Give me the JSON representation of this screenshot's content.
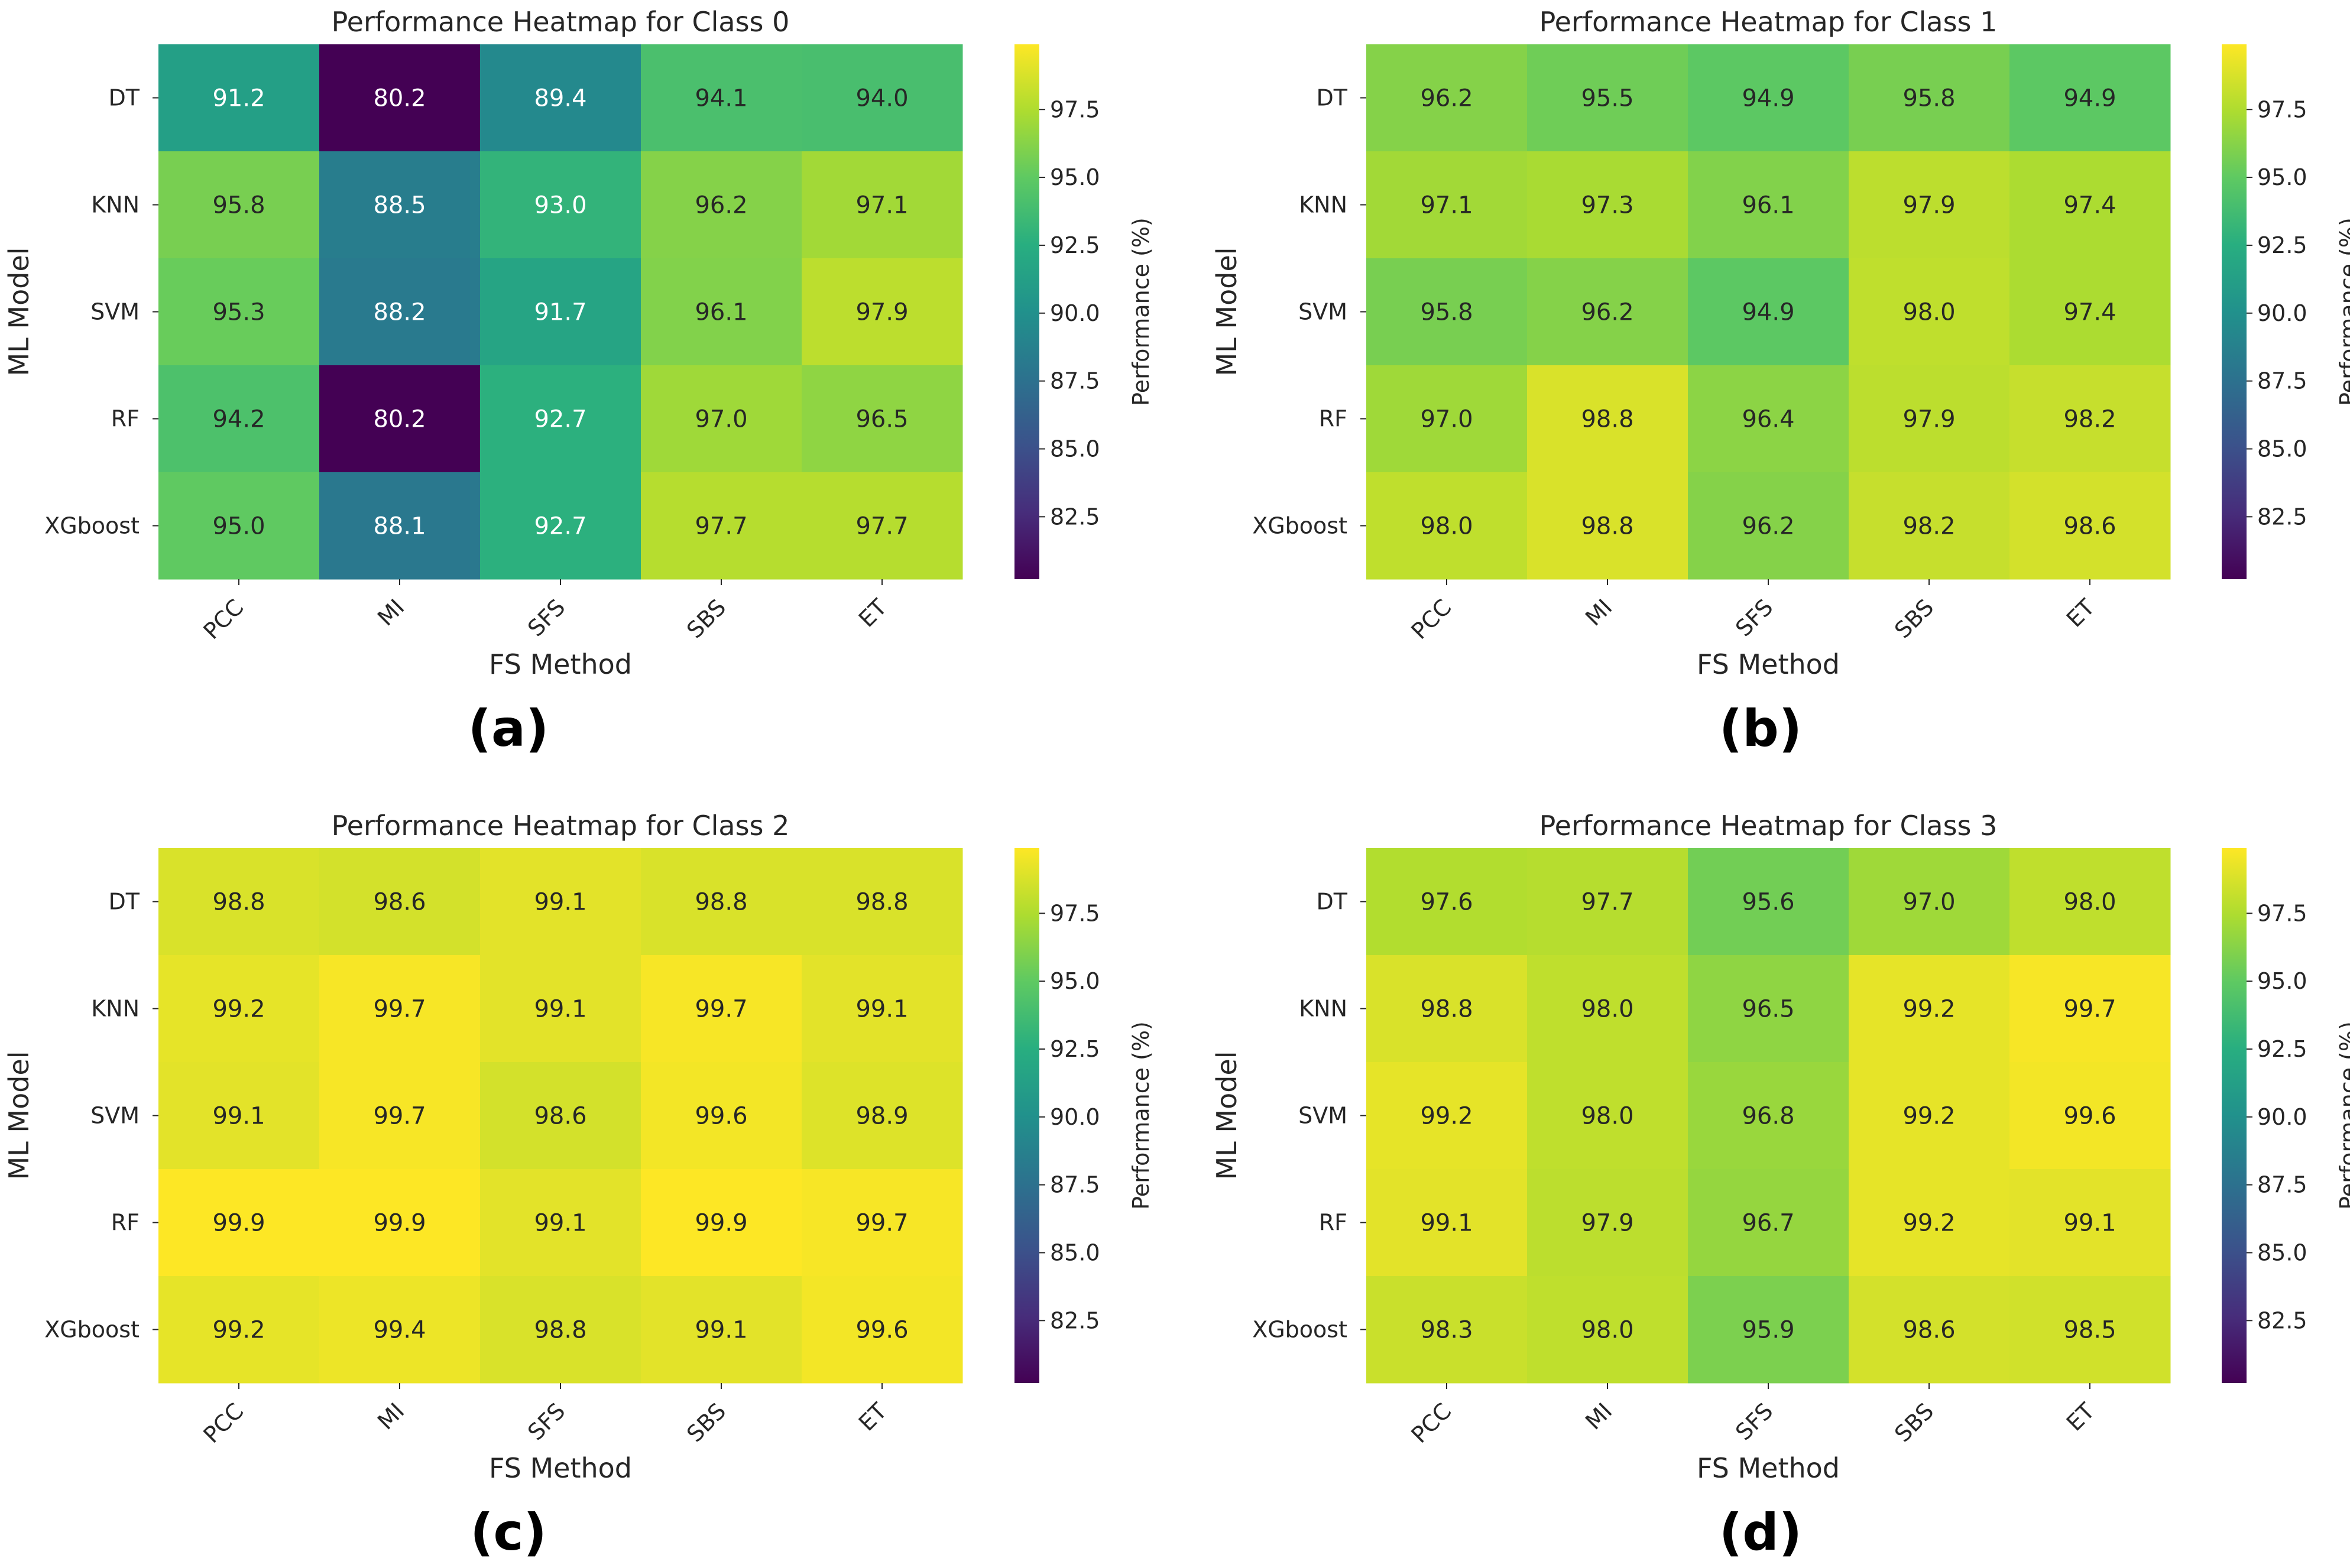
{
  "chart_data": [
    {
      "type": "heatmap",
      "title": "Performance Heatmap for Class 0",
      "panel_label": "(a)",
      "xlabel": "FS Method",
      "ylabel": "ML Model",
      "x_categories": [
        "PCC",
        "MI",
        "SFS",
        "SBS",
        "ET"
      ],
      "y_categories": [
        "DT",
        "KNN",
        "SVM",
        "RF",
        "XGboost"
      ],
      "values": [
        [
          91.2,
          80.2,
          89.4,
          94.1,
          94.0
        ],
        [
          95.8,
          88.5,
          93.0,
          96.2,
          97.1
        ],
        [
          95.3,
          88.2,
          91.7,
          96.1,
          97.9
        ],
        [
          94.2,
          80.2,
          92.7,
          97.0,
          96.5
        ],
        [
          95.0,
          88.1,
          92.7,
          97.7,
          97.7
        ]
      ],
      "colorbar": {
        "label": "Performance (%)",
        "min": 80.2,
        "max": 99.9,
        "ticks": [
          "82.5",
          "85.0",
          "87.5",
          "90.0",
          "92.5",
          "95.0",
          "97.5"
        ]
      }
    },
    {
      "type": "heatmap",
      "title": "Performance Heatmap for Class 1",
      "panel_label": "(b)",
      "xlabel": "FS Method",
      "ylabel": "ML Model",
      "x_categories": [
        "PCC",
        "MI",
        "SFS",
        "SBS",
        "ET"
      ],
      "y_categories": [
        "DT",
        "KNN",
        "SVM",
        "RF",
        "XGboost"
      ],
      "values": [
        [
          96.2,
          95.5,
          94.9,
          95.8,
          94.9
        ],
        [
          97.1,
          97.3,
          96.1,
          97.9,
          97.4
        ],
        [
          95.8,
          96.2,
          94.9,
          98.0,
          97.4
        ],
        [
          97.0,
          98.8,
          96.4,
          97.9,
          98.2
        ],
        [
          98.0,
          98.8,
          96.2,
          98.2,
          98.6
        ]
      ],
      "colorbar": {
        "label": "Performance (%)",
        "min": 80.2,
        "max": 99.9,
        "ticks": [
          "82.5",
          "85.0",
          "87.5",
          "90.0",
          "92.5",
          "95.0",
          "97.5"
        ]
      }
    },
    {
      "type": "heatmap",
      "title": "Performance Heatmap for Class 2",
      "panel_label": "(c)",
      "xlabel": "FS Method",
      "ylabel": "ML Model",
      "x_categories": [
        "PCC",
        "MI",
        "SFS",
        "SBS",
        "ET"
      ],
      "y_categories": [
        "DT",
        "KNN",
        "SVM",
        "RF",
        "XGboost"
      ],
      "values": [
        [
          98.8,
          98.6,
          99.1,
          98.8,
          98.8
        ],
        [
          99.2,
          99.7,
          99.1,
          99.7,
          99.1
        ],
        [
          99.1,
          99.7,
          98.6,
          99.6,
          98.9
        ],
        [
          99.9,
          99.9,
          99.1,
          99.9,
          99.7
        ],
        [
          99.2,
          99.4,
          98.8,
          99.1,
          99.6
        ]
      ],
      "colorbar": {
        "label": "Performance (%)",
        "min": 80.2,
        "max": 99.9,
        "ticks": [
          "82.5",
          "85.0",
          "87.5",
          "90.0",
          "92.5",
          "95.0",
          "97.5"
        ]
      }
    },
    {
      "type": "heatmap",
      "title": "Performance Heatmap for Class 3",
      "panel_label": "(d)",
      "xlabel": "FS Method",
      "ylabel": "ML Model",
      "x_categories": [
        "PCC",
        "MI",
        "SFS",
        "SBS",
        "ET"
      ],
      "y_categories": [
        "DT",
        "KNN",
        "SVM",
        "RF",
        "XGboost"
      ],
      "values": [
        [
          97.6,
          97.7,
          95.6,
          97.0,
          98.0
        ],
        [
          98.8,
          98.0,
          96.5,
          99.2,
          99.7
        ],
        [
          99.2,
          98.0,
          96.8,
          99.2,
          99.6
        ],
        [
          99.1,
          97.9,
          96.7,
          99.2,
          99.1
        ],
        [
          98.3,
          98.0,
          95.9,
          98.6,
          98.5
        ]
      ],
      "colorbar": {
        "label": "Performance (%)",
        "min": 80.2,
        "max": 99.9,
        "ticks": [
          "82.5",
          "85.0",
          "87.5",
          "90.0",
          "92.5",
          "95.0",
          "97.5"
        ]
      }
    }
  ]
}
